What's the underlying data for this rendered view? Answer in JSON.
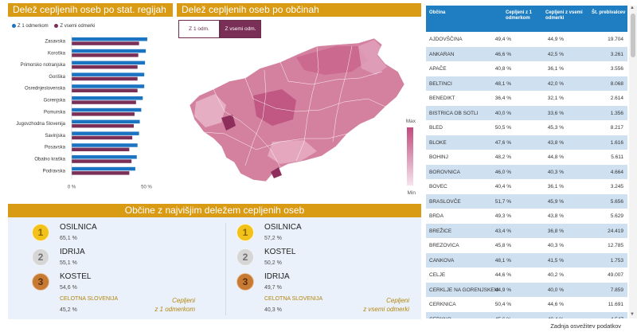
{
  "regions": {
    "title": "Delež cepljenih oseb po stat. regijah",
    "legend": [
      {
        "label": "Z 1 odmerkom",
        "color": "#1a74c2"
      },
      {
        "label": "Z vsemi odmerki",
        "color": "#7a2f57"
      }
    ],
    "axis_labels": [
      "0 %",
      "50 %"
    ]
  },
  "map": {
    "title": "Delež cepljenih oseb po občinah",
    "toggle_off": "Z 1 odm.",
    "toggle_on": "Z vsemi odm.",
    "scale_max": "Max",
    "scale_min": "Min",
    "colors": {
      "high": "#c14b7e",
      "low": "#f6e4ed"
    }
  },
  "top": {
    "title": "Občine z najvišjim deležem cepljenih oseb",
    "left": [
      {
        "rank": "1",
        "name": "OSILNICA",
        "value": "65,1 %"
      },
      {
        "rank": "2",
        "name": "IDRIJA",
        "value": "55,1 %"
      },
      {
        "rank": "3",
        "name": "KOSTEL",
        "value": "54,6 %"
      }
    ],
    "right": [
      {
        "rank": "1",
        "name": "OSILNICA",
        "value": "57,2 %"
      },
      {
        "rank": "2",
        "name": "KOSTEL",
        "value": "50,2 %"
      },
      {
        "rank": "3",
        "name": "IDRIJA",
        "value": "49,7 %"
      }
    ],
    "slo_label": "CELOTNA SLOVENIJA",
    "left_slo_value": "45,2 %",
    "right_slo_value": "40,3 %",
    "left_caption_1": "Cepljeni",
    "left_caption_2": "z 1 odmerkom",
    "right_caption_1": "Cepljeni",
    "right_caption_2": "z vsemi odmerki"
  },
  "table": {
    "headers": [
      "Občina",
      "Cepljeni z 1 odmerkom",
      "Cepljeni z vsemi odmerki",
      "Št. prebivalcev"
    ],
    "rows": [
      [
        "AJDOVŠČINA",
        "49,4 %",
        "44,9 %",
        "19.704"
      ],
      [
        "ANKARAN",
        "46,6 %",
        "42,5 %",
        "3.261"
      ],
      [
        "APAČE",
        "40,8 %",
        "36,1 %",
        "3.556"
      ],
      [
        "BELTINCI",
        "48,1 %",
        "42,0 %",
        "8.068"
      ],
      [
        "BENEDIKT",
        "36,4 %",
        "32,1 %",
        "2.614"
      ],
      [
        "BISTRICA OB SOTLI",
        "40,0 %",
        "33,6 %",
        "1.356"
      ],
      [
        "BLED",
        "50,5 %",
        "45,3 %",
        "8.217"
      ],
      [
        "BLOKE",
        "47,6 %",
        "43,8 %",
        "1.616"
      ],
      [
        "BOHINJ",
        "48,2 %",
        "44,8 %",
        "5.611"
      ],
      [
        "BOROVNICA",
        "46,0 %",
        "40,3 %",
        "4.664"
      ],
      [
        "BOVEC",
        "40,4 %",
        "36,1 %",
        "3.245"
      ],
      [
        "BRASLOVČE",
        "51,7 %",
        "45,9 %",
        "5.656"
      ],
      [
        "BRDA",
        "49,3 %",
        "43,8 %",
        "5.629"
      ],
      [
        "BREŽICE",
        "43,4 %",
        "36,8 %",
        "24.419"
      ],
      [
        "BREZOVICA",
        "45,8 %",
        "40,3 %",
        "12.785"
      ],
      [
        "CANKOVA",
        "48,1 %",
        "41,5 %",
        "1.753"
      ],
      [
        "CELJE",
        "44,6 %",
        "40,2 %",
        "49.007"
      ],
      [
        "CERKLJE NA GORENJSKEM",
        "44,9 %",
        "40,0 %",
        "7.859"
      ],
      [
        "CERKNICA",
        "50,4 %",
        "44,6 %",
        "11.691"
      ],
      [
        "CERKNO",
        "45,6 %",
        "40,4 %",
        "4.547"
      ],
      [
        "ČERKVENJAK",
        "",
        "",
        ""
      ]
    ]
  },
  "footer": "Zadnja osvežitev podatkov",
  "chart_data": {
    "type": "bar",
    "orientation": "horizontal",
    "title": "Delež cepljenih oseb po stat. regijah",
    "categories": [
      "Zasavska",
      "Koroška",
      "Primorsko notranjska",
      "Goriška",
      "Osrednjeslovenska",
      "Gorenjska",
      "Pomurska",
      "Jugovzhodna Slovenija",
      "Savinjska",
      "Posavska",
      "Obalno kraška",
      "Podravska"
    ],
    "series": [
      {
        "name": "Z 1 odmerkom",
        "color": "#1a74c2",
        "values": [
          50.5,
          49.5,
          49,
          48.5,
          48.5,
          47.5,
          46.5,
          45.5,
          45,
          44,
          43.5,
          42.5
        ]
      },
      {
        "name": "Z vsemi odmerki",
        "color": "#7a2f57",
        "values": [
          45,
          44.5,
          44,
          44,
          44,
          43,
          42,
          41.5,
          40.5,
          38.5,
          40,
          38.5
        ]
      }
    ],
    "xlim": [
      0,
      50
    ],
    "xticks": [
      "0 %",
      "50 %"
    ]
  }
}
